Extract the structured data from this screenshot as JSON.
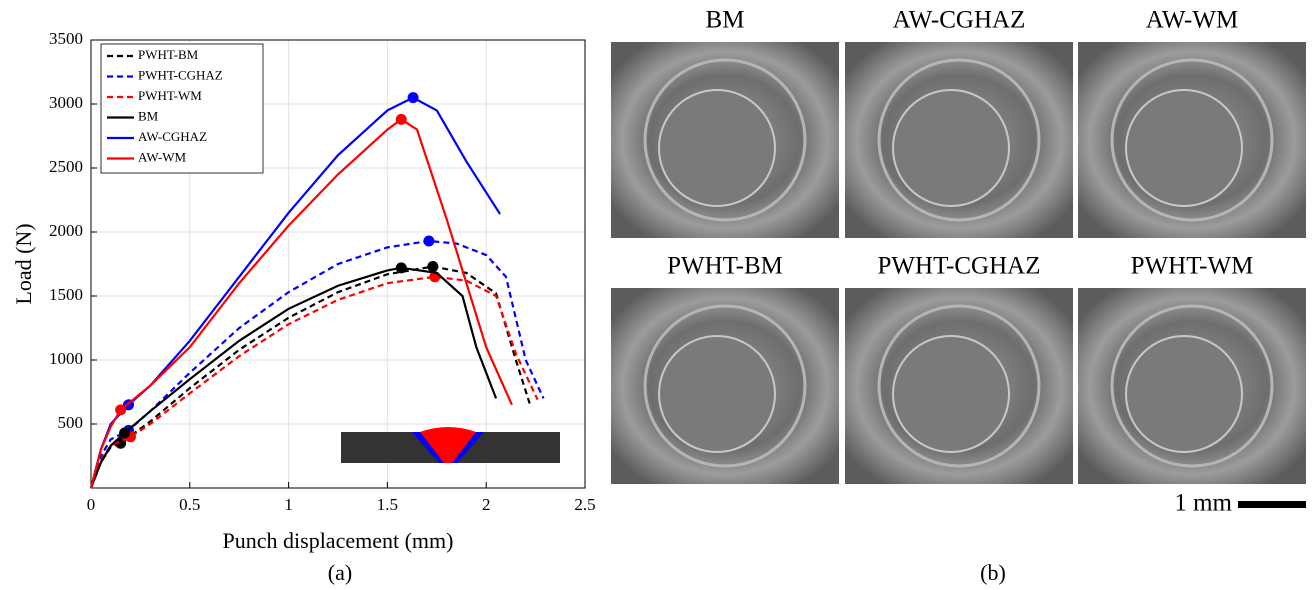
{
  "chart_data": {
    "type": "line",
    "xlabel": "Punch displacement (mm)",
    "ylabel": "Load (N)",
    "xlim": [
      0,
      2.5
    ],
    "xticks": [
      0,
      0.5,
      1,
      1.5,
      2,
      2.5
    ],
    "ylim": [
      0,
      3500
    ],
    "yticks": [
      500,
      1000,
      1500,
      2000,
      2500,
      3000,
      3500
    ],
    "grid": true,
    "legend": "upper left",
    "series": [
      {
        "name": "PWHT-BM",
        "color": "#000000",
        "dashed": true,
        "x": [
          0,
          0.05,
          0.1,
          0.15,
          0.3,
          0.5,
          0.75,
          1,
          1.25,
          1.5,
          1.73,
          1.9,
          2.05,
          2.15,
          2.22
        ],
        "values": [
          0,
          200,
          320,
          350,
          520,
          780,
          1080,
          1330,
          1530,
          1670,
          1730,
          1680,
          1520,
          1000,
          660
        ],
        "marker_x": [
          0.15,
          1.73
        ],
        "marker_values": [
          350,
          1730
        ]
      },
      {
        "name": "PWHT-CGHAZ",
        "color": "#0000ff",
        "dashed": true,
        "x": [
          0,
          0.05,
          0.1,
          0.19,
          0.3,
          0.5,
          0.75,
          1,
          1.25,
          1.5,
          1.71,
          1.85,
          2,
          2.1,
          2.2,
          2.29
        ],
        "values": [
          0,
          250,
          380,
          450,
          600,
          900,
          1250,
          1530,
          1750,
          1880,
          1930,
          1910,
          1820,
          1650,
          1000,
          700
        ],
        "marker_x": [
          0.19,
          1.71
        ],
        "marker_values": [
          450,
          1930
        ]
      },
      {
        "name": "PWHT-WM",
        "color": "#ff0000",
        "dashed": true,
        "x": [
          0,
          0.05,
          0.1,
          0.2,
          0.3,
          0.5,
          0.75,
          1,
          1.25,
          1.5,
          1.74,
          1.9,
          2.05,
          2.15,
          2.26
        ],
        "values": [
          0,
          220,
          330,
          400,
          500,
          740,
          1030,
          1280,
          1470,
          1600,
          1650,
          1620,
          1500,
          1050,
          690
        ],
        "marker_x": [
          0.2,
          1.74
        ],
        "marker_values": [
          400,
          1650
        ]
      },
      {
        "name": "BM",
        "color": "#000000",
        "dashed": false,
        "x": [
          0,
          0.05,
          0.1,
          0.17,
          0.3,
          0.5,
          0.75,
          1,
          1.25,
          1.5,
          1.57,
          1.75,
          1.88,
          1.95,
          2.05
        ],
        "values": [
          0,
          200,
          330,
          430,
          600,
          850,
          1150,
          1400,
          1580,
          1700,
          1720,
          1680,
          1500,
          1100,
          700
        ],
        "marker_x": [
          0.17,
          1.57
        ],
        "marker_values": [
          430,
          1720
        ]
      },
      {
        "name": "AW-CGHAZ",
        "color": "#0000ff",
        "dashed": false,
        "x": [
          0,
          0.05,
          0.1,
          0.19,
          0.3,
          0.5,
          0.75,
          1,
          1.25,
          1.5,
          1.63,
          1.75,
          1.9,
          2.07
        ],
        "values": [
          0,
          300,
          500,
          650,
          800,
          1150,
          1650,
          2150,
          2600,
          2950,
          3050,
          2950,
          2550,
          2140
        ],
        "marker_x": [
          0.19,
          1.63
        ],
        "marker_values": [
          650,
          3050
        ]
      },
      {
        "name": "AW-WM",
        "color": "#ff0000",
        "dashed": false,
        "x": [
          0,
          0.05,
          0.1,
          0.15,
          0.3,
          0.5,
          0.75,
          1,
          1.25,
          1.5,
          1.57,
          1.65,
          1.8,
          2,
          2.13
        ],
        "values": [
          0,
          300,
          480,
          610,
          800,
          1100,
          1600,
          2050,
          2450,
          2800,
          2880,
          2800,
          2100,
          1100,
          650
        ],
        "marker_x": [
          0.15,
          1.57
        ],
        "marker_values": [
          610,
          2880
        ]
      }
    ]
  },
  "panels": {
    "a_label": "(a)",
    "b_label": "(b)",
    "scale_bar": "1 mm",
    "images": [
      "BM",
      "AW-CGHAZ",
      "AW-WM",
      "PWHT-BM",
      "PWHT-CGHAZ",
      "PWHT-WM"
    ]
  }
}
